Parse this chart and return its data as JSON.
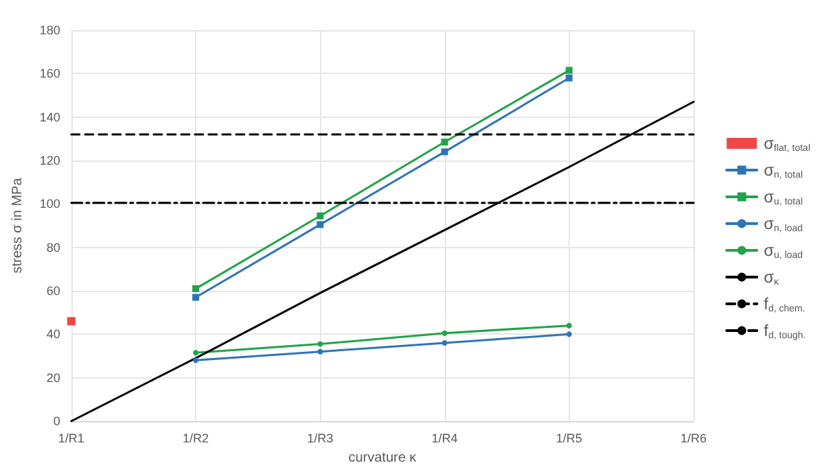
{
  "chart_data": {
    "type": "line",
    "xlabel": "curvature κ",
    "ylabel": "stress σ in MPa",
    "categories": [
      "1/R1",
      "1/R2",
      "1/R3",
      "1/R4",
      "1/R5",
      "1/R6"
    ],
    "ylim": [
      0,
      180
    ],
    "yticks": [
      0,
      20,
      40,
      60,
      80,
      100,
      120,
      140,
      160,
      180
    ],
    "grid": true,
    "legend": "right",
    "series": [
      {
        "name": "σ$_{flat, total}$",
        "type": "scatter",
        "color": "#e8191c",
        "marker": "square",
        "values": [
          46,
          null,
          null,
          null,
          null,
          null
        ]
      },
      {
        "name": "σ$_{n, total}$",
        "color": "#2e75b6",
        "marker": "square",
        "values": [
          null,
          57,
          90.5,
          124,
          158,
          null
        ]
      },
      {
        "name": "σ$_{u, total}$",
        "color": "#22a34a",
        "marker": "square",
        "values": [
          null,
          61,
          94.5,
          128.5,
          161.5,
          null
        ]
      },
      {
        "name": "σ$_{n, load}$",
        "color": "#2e75b6",
        "marker": "circle",
        "values": [
          null,
          28,
          32,
          36,
          40,
          null
        ]
      },
      {
        "name": "σ$_{u, load}$",
        "color": "#22a34a",
        "marker": "circle",
        "values": [
          null,
          31.5,
          35.5,
          40.5,
          44,
          null
        ]
      },
      {
        "name": "σ$_{κ}$",
        "color": "#000000",
        "marker": "none",
        "values": [
          0,
          29,
          59,
          88,
          117,
          147
        ]
      },
      {
        "name": "f$_{d, chem.}$",
        "color": "#000000",
        "marker": "none",
        "line_style": "dashed",
        "values": [
          132,
          132,
          132,
          132,
          132,
          132
        ]
      },
      {
        "name": "f$_{d, tough.}$",
        "color": "#000000",
        "marker": "none",
        "line_style": "dashdot",
        "values": [
          100.5,
          100.5,
          100.5,
          100.5,
          100.5,
          100.5
        ]
      }
    ]
  }
}
